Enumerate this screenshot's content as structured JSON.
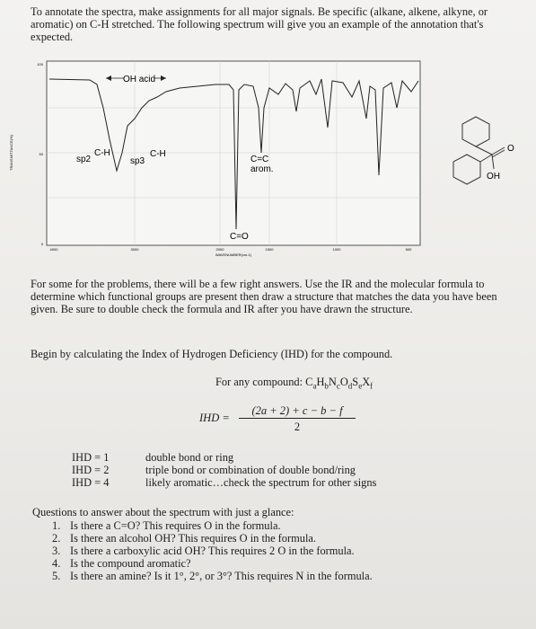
{
  "intro": "To annotate the spectra, make assignments for all major signals. Be specific (alkane, alkene, alkyne, or aromatic) on C-H stretched. The following spectrum will give you an example of the annotation that's expected.",
  "figure": {
    "y_ticks": [
      "100",
      "50",
      "0"
    ],
    "x_ticks": [
      "4000",
      "3000",
      "2000",
      "1500",
      "1000",
      "500"
    ],
    "y_label": "TRANSMITTANCE(%)",
    "x_label": "WAVENUMBER(cm-1)",
    "oh_acid": "OH acid",
    "sp2": "sp2",
    "ch_1": "C-H",
    "sp3": "sp3",
    "ch_2": "C-H",
    "cc": "C=C",
    "arom": "arom.",
    "co": "C=O",
    "molecule_o": "O",
    "molecule_oh": "OH"
  },
  "paragraph1": "For some for the problems, there will be a few right answers. Use the IR and the molecular formula to determine which functional groups are present then draw a structure that matches the data you have been given. Be sure to double check the formula and IR after you have drawn the structure.",
  "paragraph2": "Begin by calculating the Index of Hydrogen Deficiency (IHD) for the compound.",
  "formula": {
    "label": "For any compound:",
    "parts": [
      [
        "C",
        "a"
      ],
      [
        "H",
        "b"
      ],
      [
        "N",
        "c"
      ],
      [
        "O",
        "d"
      ],
      [
        "S",
        "e"
      ],
      [
        "X",
        "f"
      ]
    ],
    "lhs": "IHD =",
    "numerator": "(2a + 2) + c − b − f",
    "denominator": "2"
  },
  "ihd_table": [
    [
      "IHD = 1",
      "double bond or ring"
    ],
    [
      "IHD = 2",
      "triple bond or combination of double bond/ring"
    ],
    [
      "IHD = 4",
      "likely aromatic…check the spectrum for other signs"
    ]
  ],
  "questions": {
    "heading": "Questions to answer about the spectrum with just a glance:",
    "items": [
      [
        "1.",
        "Is there a C=O? This requires O in the formula."
      ],
      [
        "2.",
        "Is there an alcohol OH? This requires O in the formula."
      ],
      [
        "3.",
        "Is there a carboxylic acid OH? This requires 2 O in the formula."
      ],
      [
        "4.",
        "Is the compound aromatic?"
      ],
      [
        "5.",
        "Is there an amine? Is it 1°, 2°, or 3°? This requires N in the formula."
      ]
    ]
  }
}
